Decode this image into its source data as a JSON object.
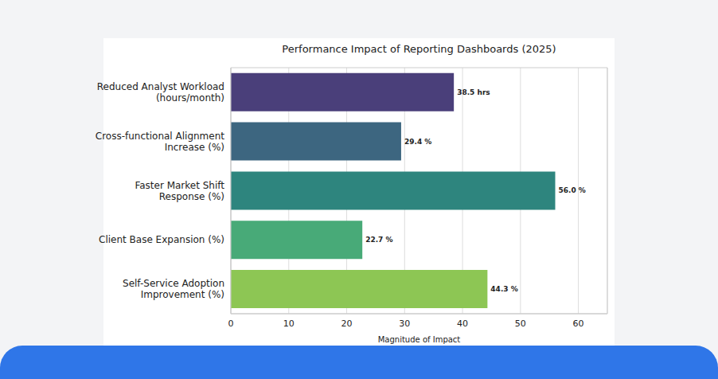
{
  "chart_data": {
    "type": "bar",
    "title": "Performance Impact of Reporting Dashboards (2025)",
    "orientation": "horizontal",
    "categories": [
      "Reduced Analyst Workload (hours/month)",
      "Cross-functional Alignment Increase (%)",
      "Faster Market Shift Response (%)",
      "Client Base Expansion (%)",
      "Self-Service Adoption Improvement (%)"
    ],
    "values": [
      38.5,
      29.4,
      56.0,
      22.7,
      44.3
    ],
    "value_labels": [
      "38.5 hrs",
      "29.4 %",
      "56.0 %",
      "22.7 %",
      "44.3 %"
    ],
    "colors": [
      "#4a3f7a",
      "#3d6680",
      "#2e857e",
      "#48aa78",
      "#8dc654"
    ],
    "xlabel": "Magnitude of Impact",
    "xlim": [
      0,
      65
    ],
    "xticks": [
      0,
      10,
      20,
      30,
      40,
      50,
      60
    ],
    "grid": true,
    "data_labels": true
  }
}
